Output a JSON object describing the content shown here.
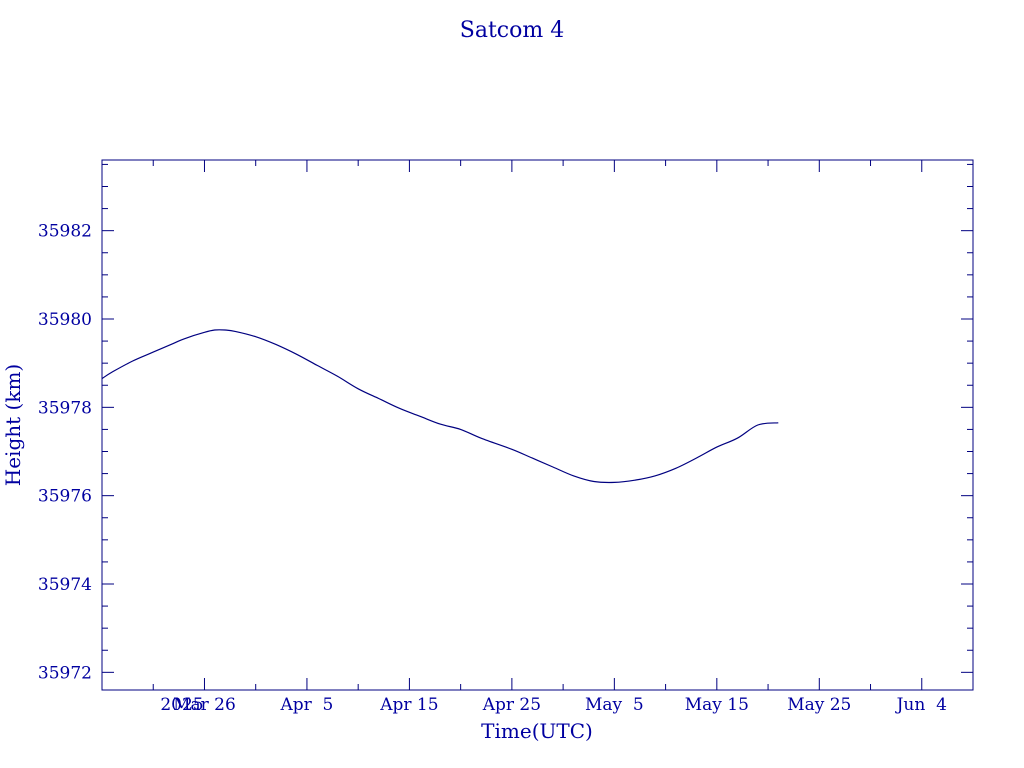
{
  "chart_data": {
    "type": "line",
    "title": "Satcom 4",
    "xlabel": "Time(UTC)",
    "ylabel": "Height (km)",
    "color": "#000080",
    "text_color": "#0000a0",
    "x_start_label": "2025",
    "xlim": [
      "2025-03-16",
      "2025-06-09"
    ],
    "ylim": [
      35971.6,
      35983.6
    ],
    "grid": false,
    "x_ticks": [
      {
        "date": "2025-03-26",
        "label": "Mar 26"
      },
      {
        "date": "2025-04-05",
        "label": "Apr  5"
      },
      {
        "date": "2025-04-15",
        "label": "Apr 15"
      },
      {
        "date": "2025-04-25",
        "label": "Apr 25"
      },
      {
        "date": "2025-05-05",
        "label": "May  5"
      },
      {
        "date": "2025-05-15",
        "label": "May 15"
      },
      {
        "date": "2025-05-25",
        "label": "May 25"
      },
      {
        "date": "2025-06-04",
        "label": "Jun  4"
      }
    ],
    "y_ticks": [
      35972,
      35974,
      35976,
      35978,
      35980,
      35982
    ],
    "series": [
      {
        "x": [
          "2025-03-16",
          "2025-03-17",
          "2025-03-19",
          "2025-03-21",
          "2025-03-23",
          "2025-03-24",
          "2025-03-26",
          "2025-03-27",
          "2025-03-28",
          "2025-03-29",
          "2025-03-31",
          "2025-04-02",
          "2025-04-04",
          "2025-04-06",
          "2025-04-08",
          "2025-04-10",
          "2025-04-12",
          "2025-04-14",
          "2025-04-16",
          "2025-04-18",
          "2025-04-20",
          "2025-04-22",
          "2025-04-25",
          "2025-04-27",
          "2025-04-29",
          "2025-05-01",
          "2025-05-03",
          "2025-05-05",
          "2025-05-07",
          "2025-05-09",
          "2025-05-11",
          "2025-05-13",
          "2025-05-15",
          "2025-05-17",
          "2025-05-19",
          "2025-05-21"
        ],
        "y": [
          35978.65,
          35978.8,
          35979.05,
          35979.25,
          35979.45,
          35979.55,
          35979.7,
          35979.75,
          35979.75,
          35979.72,
          35979.6,
          35979.42,
          35979.2,
          35978.95,
          35978.7,
          35978.42,
          35978.2,
          35977.98,
          35977.8,
          35977.62,
          35977.5,
          35977.3,
          35977.05,
          35976.85,
          35976.65,
          35976.45,
          35976.32,
          35976.3,
          35976.35,
          35976.45,
          35976.62,
          35976.85,
          35977.1,
          35977.3,
          35977.6,
          35977.65
        ]
      }
    ]
  }
}
